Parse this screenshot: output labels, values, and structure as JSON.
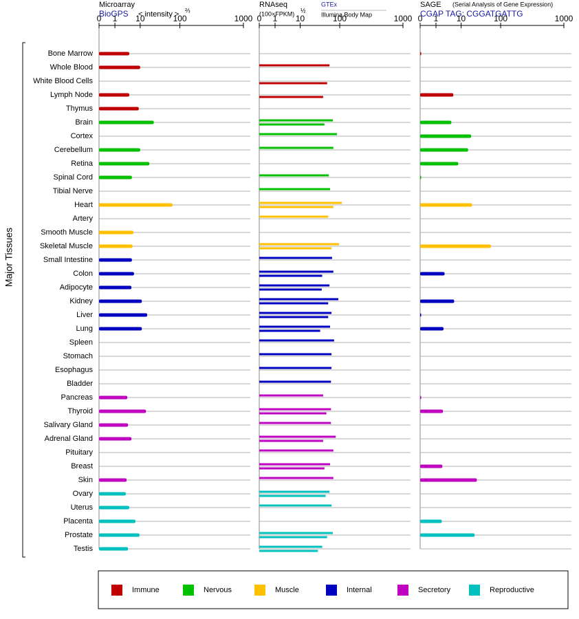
{
  "y_axis_label": "Major Tissues",
  "categories": [
    "Bone Marrow",
    "Whole Blood",
    "White Blood Cells",
    "Lymph Node",
    "Thymus",
    "Brain",
    "Cortex",
    "Cerebellum",
    "Retina",
    "Spinal Cord",
    "Tibial Nerve",
    "Heart",
    "Artery",
    "Smooth Muscle",
    "Skeletal Muscle",
    "Small Intestine",
    "Colon",
    "Adipocyte",
    "Kidney",
    "Liver",
    "Lung",
    "Spleen",
    "Stomach",
    "Esophagus",
    "Bladder",
    "Pancreas",
    "Thyroid",
    "Salivary Gland",
    "Adrenal Gland",
    "Pituitary",
    "Breast",
    "Skin",
    "Ovary",
    "Uterus",
    "Placenta",
    "Prostate",
    "Testis"
  ],
  "category_groups": [
    "Immune",
    "Immune",
    "Immune",
    "Immune",
    "Immune",
    "Nervous",
    "Nervous",
    "Nervous",
    "Nervous",
    "Nervous",
    "Nervous",
    "Muscle",
    "Muscle",
    "Muscle",
    "Muscle",
    "Internal",
    "Internal",
    "Internal",
    "Internal",
    "Internal",
    "Internal",
    "Internal",
    "Internal",
    "Internal",
    "Internal",
    "Secretory",
    "Secretory",
    "Secretory",
    "Secretory",
    "Secretory",
    "Secretory",
    "Secretory",
    "Reproductive",
    "Reproductive",
    "Reproductive",
    "Reproductive",
    "Reproductive"
  ],
  "legend": [
    {
      "name": "Immune",
      "color": "#c00000"
    },
    {
      "name": "Nervous",
      "color": "#00c000"
    },
    {
      "name": "Muscle",
      "color": "#ffc000"
    },
    {
      "name": "Internal",
      "color": "#0000c0"
    },
    {
      "name": "Secretory",
      "color": "#c000c0"
    },
    {
      "name": "Reproductive",
      "color": "#00c0c0"
    }
  ],
  "chart_data": [
    {
      "type": "bar",
      "title": "Microarray",
      "subtitle": "BioGPS",
      "axis_label": "< intensity >",
      "axis_label_exponent": "⅔",
      "xlim": [
        0,
        1000
      ],
      "xticks": [
        0,
        1,
        10,
        100,
        1000
      ],
      "series": [
        {
          "values": [
            3.7,
            10,
            null,
            3.7,
            8.8,
            22,
            null,
            10,
            17,
            4.7,
            null,
            65,
            null,
            5.4,
            5,
            4.7,
            5.7,
            4.5,
            11,
            15,
            11,
            null,
            null,
            null,
            null,
            3.1,
            14,
            3.3,
            4.5,
            null,
            null,
            2.9,
            2.7,
            3.7,
            6.5,
            9.4,
            3.3
          ]
        }
      ]
    },
    {
      "type": "bar",
      "title": "RNAseq",
      "axis_label": "(100×FPKM)",
      "axis_label_exponent": "½",
      "xlim": [
        0,
        1000
      ],
      "xticks": [
        0,
        1,
        10,
        100,
        1000
      ],
      "series": [
        {
          "name": "GTEx",
          "values": [
            null,
            55,
            null,
            null,
            null,
            67,
            85,
            69,
            null,
            53,
            57,
            108,
            51,
            null,
            96,
            64,
            69,
            55,
            92,
            62,
            57,
            72,
            62,
            62,
            60,
            38,
            60,
            60,
            79,
            69,
            57,
            69,
            55,
            62,
            null,
            67,
            36
          ]
        },
        {
          "name": "Illumina Body Map",
          "values": [
            null,
            null,
            48,
            38,
            null,
            41,
            null,
            null,
            null,
            null,
            null,
            69,
            null,
            null,
            62,
            null,
            36,
            35,
            51,
            51,
            32,
            null,
            null,
            null,
            null,
            null,
            46,
            null,
            38,
            null,
            41,
            null,
            44,
            null,
            null,
            48,
            28
          ]
        }
      ]
    },
    {
      "type": "bar",
      "title": "SAGE",
      "subtitle": "(Serial Analysis of Gene Expression)",
      "tag": "CGAP TAG: CGGATGATTG",
      "xlim": [
        0,
        1000
      ],
      "xticks": [
        0,
        1,
        10,
        100,
        1000
      ],
      "series": [
        {
          "values": [
            0.04,
            null,
            null,
            4.9,
            null,
            4.1,
            18,
            15,
            7.7,
            0.04,
            null,
            19,
            null,
            null,
            57,
            null,
            2.2,
            null,
            5.3,
            0.04,
            2.0,
            null,
            null,
            null,
            null,
            0.04,
            1.9,
            null,
            null,
            null,
            1.8,
            25,
            null,
            null,
            1.7,
            22,
            null
          ]
        }
      ]
    }
  ]
}
